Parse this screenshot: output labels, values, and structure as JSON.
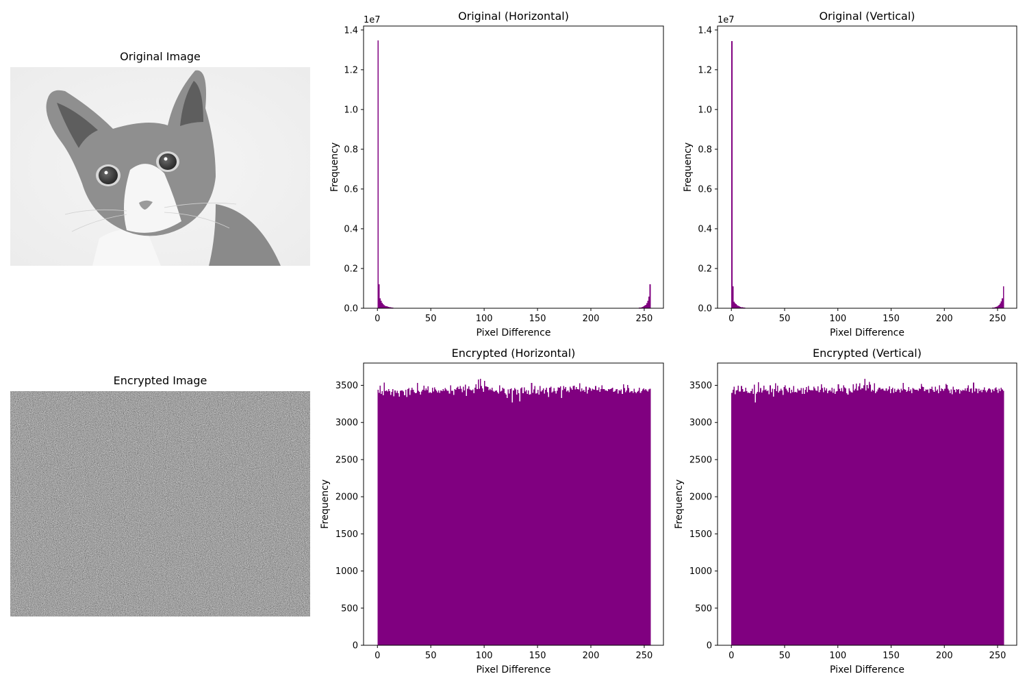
{
  "images": [
    {
      "title": "Original Image",
      "icon": "cat-photo"
    },
    {
      "title": "Encrypted Image",
      "icon": "noise-pattern"
    }
  ],
  "colors": {
    "bars": "#800080",
    "axis": "#000000",
    "background": "#ffffff"
  },
  "chart_data": [
    {
      "type": "bar",
      "title": "Original (Horizontal)",
      "xlabel": "Pixel Difference",
      "ylabel": "Frequency",
      "offset_text": "1e7",
      "xlim": [
        -13,
        268
      ],
      "ylim": [
        0,
        14200000
      ],
      "xticks": [
        0,
        50,
        100,
        150,
        200,
        250
      ],
      "yticks": [
        0,
        2000000,
        4000000,
        6000000,
        8000000,
        10000000,
        12000000,
        14000000
      ],
      "ytick_labels": [
        "0.0",
        "0.2",
        "0.4",
        "0.6",
        "0.8",
        "1.0",
        "1.2",
        "1.4"
      ],
      "bins": {
        "start": 0,
        "width": 1,
        "count": 256
      },
      "values": {
        "0": 13480000,
        "1": 1200000,
        "2": 500000,
        "3": 380000,
        "4": 280000,
        "5": 200000,
        "6": 150000,
        "7": 120000,
        "8": 95000,
        "9": 80000,
        "10": 65000,
        "11": 55000,
        "12": 45000,
        "13": 38000,
        "14": 30000,
        "243": 20000,
        "244": 25000,
        "245": 32000,
        "246": 40000,
        "247": 55000,
        "248": 70000,
        "249": 95000,
        "250": 130000,
        "251": 180000,
        "252": 260000,
        "253": 380000,
        "254": 580000,
        "255": 1200000
      }
    },
    {
      "type": "bar",
      "title": "Original (Vertical)",
      "xlabel": "Pixel Difference",
      "ylabel": "Frequency",
      "offset_text": "1e7",
      "xlim": [
        -13,
        268
      ],
      "ylim": [
        0,
        14200000
      ],
      "xticks": [
        0,
        50,
        100,
        150,
        200,
        250
      ],
      "yticks": [
        0,
        2000000,
        4000000,
        6000000,
        8000000,
        10000000,
        12000000,
        14000000
      ],
      "ytick_labels": [
        "0.0",
        "0.2",
        "0.4",
        "0.6",
        "0.8",
        "1.0",
        "1.2",
        "1.4"
      ],
      "bins": {
        "start": 0,
        "width": 1,
        "count": 256
      },
      "values": {
        "0": 13450000,
        "1": 1100000,
        "2": 330000,
        "3": 260000,
        "4": 200000,
        "5": 160000,
        "6": 120000,
        "7": 95000,
        "8": 75000,
        "9": 60000,
        "10": 50000,
        "11": 40000,
        "12": 32000,
        "244": 20000,
        "245": 28000,
        "246": 38000,
        "247": 50000,
        "248": 65000,
        "249": 90000,
        "250": 120000,
        "251": 170000,
        "252": 240000,
        "253": 340000,
        "254": 500000,
        "255": 1100000
      }
    },
    {
      "type": "bar",
      "title": "Encrypted (Horizontal)",
      "xlabel": "Pixel Difference",
      "ylabel": "Frequency",
      "xlim": [
        -13,
        268
      ],
      "ylim": [
        0,
        3800
      ],
      "xticks": [
        0,
        50,
        100,
        150,
        200,
        250
      ],
      "yticks": [
        0,
        500,
        1000,
        1500,
        2000,
        2500,
        3000,
        3500
      ],
      "ytick_labels": [
        "0",
        "500",
        "1000",
        "1500",
        "2000",
        "2500",
        "3000",
        "3500"
      ],
      "bins": {
        "start": 0,
        "width": 1,
        "count": 256
      },
      "values": [
        3440,
        3400,
        3496,
        3383,
        3422,
        3365,
        3535,
        3424,
        3431,
        3417,
        3451,
        3421,
        3373,
        3414,
        3448,
        3352,
        3433,
        3400,
        3425,
        3395,
        3347,
        3426,
        3430,
        3433,
        3419,
        3365,
        3439,
        3343,
        3451,
        3463,
        3372,
        3435,
        3468,
        3441,
        3406,
        3394,
        3399,
        3534,
        3427,
        3411,
        3374,
        3416,
        3439,
        3497,
        3429,
        3461,
        3435,
        3486,
        3400,
        3406,
        3398,
        3467,
        3416,
        3473,
        3447,
        3427,
        3403,
        3433,
        3400,
        3429,
        3421,
        3448,
        3427,
        3465,
        3444,
        3428,
        3426,
        3389,
        3499,
        3428,
        3425,
        3372,
        3449,
        3439,
        3466,
        3480,
        3450,
        3491,
        3452,
        3408,
        3484,
        3430,
        3508,
        3359,
        3456,
        3487,
        3447,
        3436,
        3430,
        3444,
        3393,
        3467,
        3513,
        3449,
        3577,
        3454,
        3590,
        3492,
        3461,
        3414,
        3560,
        3488,
        3483,
        3476,
        3434,
        3456,
        3435,
        3470,
        3428,
        3413,
        3426,
        3433,
        3406,
        3389,
        3499,
        3416,
        3425,
        3467,
        3454,
        3396,
        3375,
        3330,
        3444,
        3389,
        3450,
        3461,
        3271,
        3430,
        3465,
        3446,
        3374,
        3438,
        3395,
        3282,
        3457,
        3472,
        3396,
        3473,
        3418,
        3434,
        3383,
        3429,
        3374,
        3381,
        3534,
        3400,
        3446,
        3492,
        3390,
        3394,
        3438,
        3376,
        3490,
        3416,
        3437,
        3460,
        3388,
        3440,
        3466,
        3408,
        3345,
        3470,
        3481,
        3404,
        3418,
        3464,
        3424,
        3391,
        3427,
        3472,
        3470,
        3485,
        3331,
        3437,
        3493,
        3456,
        3477,
        3417,
        3431,
        3408,
        3484,
        3458,
        3438,
        3491,
        3497,
        3447,
        3475,
        3451,
        3445,
        3526,
        3415,
        3458,
        3428,
        3439,
        3411,
        3484,
        3389,
        3442,
        3471,
        3460,
        3428,
        3455,
        3446,
        3441,
        3492,
        3436,
        3434,
        3472,
        3413,
        3448,
        3499,
        3448,
        3450,
        3432,
        3433,
        3422,
        3449,
        3447,
        3448,
        3458,
        3467,
        3411,
        3421,
        3444,
        3448,
        3388,
        3437,
        3428,
        3444,
        3387,
        3514,
        3463,
        3407,
        3433,
        3505,
        3464,
        3405,
        3415,
        3424,
        3397,
        3454,
        3413,
        3396,
        3411,
        3426,
        3470,
        3398,
        3423,
        3444,
        3459,
        3436,
        3451,
        3432,
        3415,
        3444,
        3452,
        3421
      ]
    },
    {
      "type": "bar",
      "title": "Encrypted (Vertical)",
      "xlabel": "Pixel Difference",
      "ylabel": "Frequency",
      "xlim": [
        -13,
        268
      ],
      "ylim": [
        0,
        3800
      ],
      "xticks": [
        0,
        50,
        100,
        150,
        200,
        250
      ],
      "yticks": [
        0,
        500,
        1000,
        1500,
        2000,
        2500,
        3000,
        3500
      ],
      "ytick_labels": [
        "0",
        "500",
        "1000",
        "1500",
        "2000",
        "2500",
        "3000",
        "3500"
      ],
      "bins": {
        "start": 0,
        "width": 1,
        "count": 256
      },
      "values": [
        3397,
        3442,
        3480,
        3379,
        3433,
        3436,
        3494,
        3416,
        3418,
        3490,
        3448,
        3414,
        3417,
        3470,
        3421,
        3398,
        3402,
        3396,
        3422,
        3456,
        3384,
        3510,
        3271,
        3390,
        3414,
        3543,
        3409,
        3464,
        3405,
        3432,
        3495,
        3437,
        3447,
        3422,
        3429,
        3381,
        3499,
        3407,
        3455,
        3349,
        3451,
        3528,
        3422,
        3495,
        3403,
        3428,
        3454,
        3431,
        3369,
        3475,
        3502,
        3453,
        3429,
        3408,
        3468,
        3396,
        3440,
        3410,
        3492,
        3409,
        3411,
        3403,
        3452,
        3429,
        3430,
        3464,
        3384,
        3463,
        3386,
        3442,
        3479,
        3407,
        3491,
        3442,
        3430,
        3437,
        3431,
        3482,
        3459,
        3429,
        3426,
        3488,
        3406,
        3441,
        3515,
        3465,
        3410,
        3473,
        3432,
        3461,
        3396,
        3427,
        3435,
        3419,
        3469,
        3397,
        3455,
        3384,
        3419,
        3423,
        3515,
        3452,
        3422,
        3464,
        3416,
        3499,
        3473,
        3460,
        3392,
        3374,
        3461,
        3426,
        3408,
        3404,
        3514,
        3431,
        3452,
        3523,
        3430,
        3485,
        3527,
        3447,
        3463,
        3460,
        3498,
        3590,
        3430,
        3505,
        3460,
        3545,
        3510,
        3415,
        3441,
        3427,
        3530,
        3392,
        3415,
        3447,
        3466,
        3469,
        3443,
        3456,
        3454,
        3431,
        3427,
        3459,
        3425,
        3447,
        3487,
        3395,
        3448,
        3467,
        3401,
        3455,
        3411,
        3437,
        3453,
        3438,
        3404,
        3456,
        3430,
        3532,
        3448,
        3442,
        3413,
        3426,
        3478,
        3423,
        3446,
        3395,
        3462,
        3454,
        3440,
        3442,
        3442,
        3425,
        3459,
        3448,
        3517,
        3484,
        3478,
        3421,
        3444,
        3439,
        3443,
        3400,
        3453,
        3451,
        3480,
        3436,
        3413,
        3481,
        3426,
        3443,
        3392,
        3498,
        3424,
        3459,
        3449,
        3426,
        3452,
        3518,
        3505,
        3454,
        3431,
        3393,
        3447,
        3382,
        3484,
        3438,
        3407,
        3448,
        3440,
        3451,
        3391,
        3435,
        3424,
        3438,
        3431,
        3457,
        3428,
        3465,
        3499,
        3412,
        3456,
        3460,
        3401,
        3538,
        3416,
        3461,
        3453,
        3393,
        3455,
        3421,
        3440,
        3410,
        3442,
        3471,
        3429,
        3406,
        3430,
        3452,
        3460,
        3444,
        3405,
        3444,
        3423,
        3459,
        3472,
        3440,
        3397,
        3456,
        3424,
        3466,
        3444,
        3426,
        3478,
        3461,
        3492,
        3437,
        3450
      ]
    }
  ]
}
